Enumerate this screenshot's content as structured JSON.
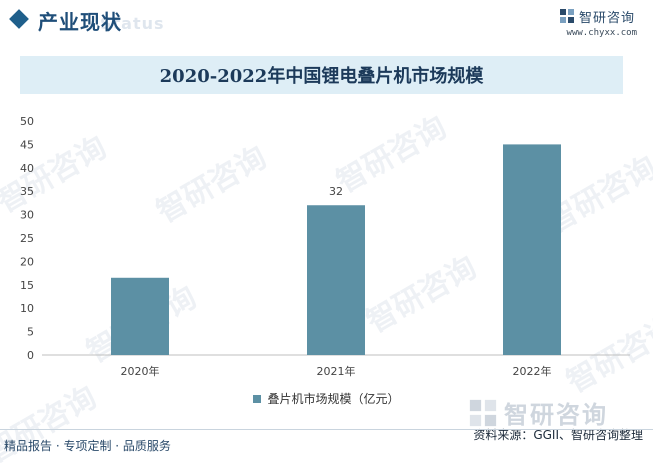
{
  "header": {
    "section_title": "产业现状",
    "watermark_en": "Status",
    "brand_name": "智研咨询",
    "brand_url": "www.chyxx.com"
  },
  "watermark_text": "智研咨询",
  "colors": {
    "bar": "#5c90a4",
    "title_band": "#deeef6",
    "accent": "#1f5f8b"
  },
  "chart_data": {
    "type": "bar",
    "title": "2020-2022年中国锂电叠片机市场规模",
    "categories": [
      "2020年",
      "2021年",
      "2022年"
    ],
    "series": [
      {
        "name": "叠片机市场规模（亿元）",
        "values": [
          16.5,
          32,
          45
        ]
      }
    ],
    "data_labels": [
      "",
      "32",
      ""
    ],
    "yticks": [
      0,
      5,
      10,
      15,
      20,
      25,
      30,
      35,
      40,
      45,
      50
    ],
    "ylim": [
      0,
      50
    ],
    "grid": false,
    "legend": "bottom-center"
  },
  "footer": {
    "left_text": "精品报告 · 专项定制 · 品质服务",
    "source_text": "资料来源：GGII、智研咨询整理",
    "brand_name": "智研咨询"
  }
}
